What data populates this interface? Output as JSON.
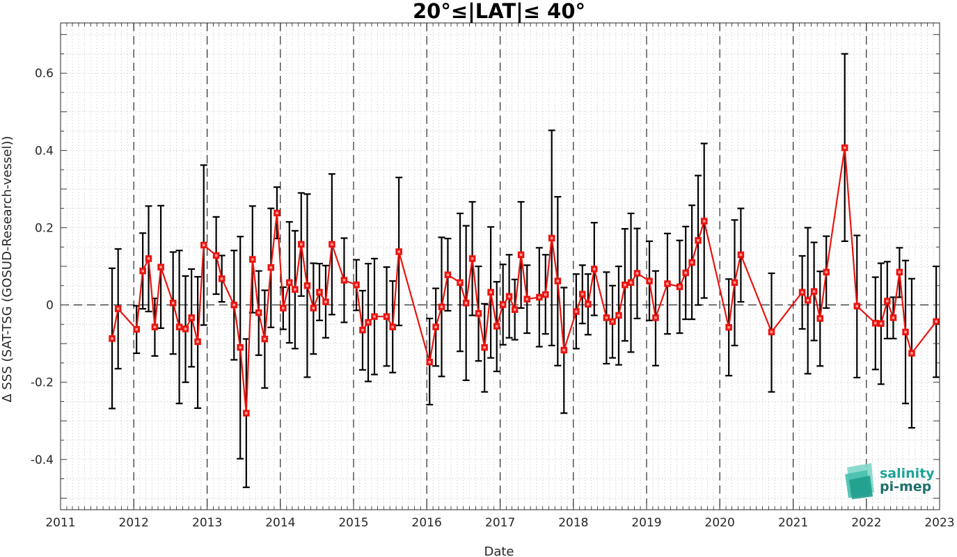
{
  "chart_data": {
    "type": "line",
    "title": "20°≤|LAT|≤ 40°",
    "xlabel": "Date",
    "ylabel": "Δ SSS (SAT-TSG (GOSUD-Research-vessel))",
    "xlim": [
      "2011-01-01",
      "2023-01-01"
    ],
    "ylim": [
      -0.53,
      0.73
    ],
    "xticks": [
      "2011",
      "2012",
      "2013",
      "2014",
      "2015",
      "2016",
      "2017",
      "2018",
      "2019",
      "2020",
      "2021",
      "2022",
      "2023"
    ],
    "yticks": [
      "-0.4",
      "-0.2",
      "0",
      "0.2",
      "0.4",
      "0.6"
    ],
    "year_separators": "dashed vertical line at each year start",
    "zero_line": "dashed horizontal line at 0",
    "grid": "dotted",
    "series": [
      {
        "color": "#e8140f",
        "marker": "square",
        "error_bar_color": "#000000",
        "points": [
          {
            "date": "2011-09-15",
            "y": -0.087,
            "lo": -0.268,
            "hi": 0.095
          },
          {
            "date": "2011-10-15",
            "y": -0.01,
            "lo": -0.165,
            "hi": 0.145
          },
          {
            "date": "2012-01-15",
            "y": -0.063,
            "lo": -0.125,
            "hi": -0.002
          },
          {
            "date": "2012-02-15",
            "y": 0.088,
            "lo": -0.01,
            "hi": 0.186
          },
          {
            "date": "2012-03-15",
            "y": 0.12,
            "lo": -0.017,
            "hi": 0.256
          },
          {
            "date": "2012-04-15",
            "y": -0.057,
            "lo": -0.132,
            "hi": 0.017
          },
          {
            "date": "2012-05-15",
            "y": 0.098,
            "lo": -0.06,
            "hi": 0.257
          },
          {
            "date": "2012-07-15",
            "y": 0.005,
            "lo": -0.127,
            "hi": 0.137
          },
          {
            "date": "2012-08-15",
            "y": -0.057,
            "lo": -0.255,
            "hi": 0.141
          },
          {
            "date": "2012-09-15",
            "y": -0.062,
            "lo": -0.2,
            "hi": 0.075
          },
          {
            "date": "2012-10-15",
            "y": -0.033,
            "lo": -0.16,
            "hi": 0.093
          },
          {
            "date": "2012-11-15",
            "y": -0.095,
            "lo": -0.267,
            "hi": 0.073
          },
          {
            "date": "2012-12-15",
            "y": 0.155,
            "lo": -0.052,
            "hi": 0.362
          },
          {
            "date": "2013-02-15",
            "y": 0.128,
            "lo": 0.028,
            "hi": 0.228
          },
          {
            "date": "2013-03-15",
            "y": 0.068,
            "lo": 0.008,
            "hi": 0.128
          },
          {
            "date": "2013-05-15",
            "y": 0.0,
            "lo": -0.142,
            "hi": 0.141
          },
          {
            "date": "2013-06-15",
            "y": -0.11,
            "lo": -0.398,
            "hi": 0.177
          },
          {
            "date": "2013-07-15",
            "y": -0.28,
            "lo": -0.472,
            "hi": -0.088
          },
          {
            "date": "2013-08-15",
            "y": 0.118,
            "lo": -0.02,
            "hi": 0.256
          },
          {
            "date": "2013-09-15",
            "y": -0.02,
            "lo": -0.13,
            "hi": 0.088
          },
          {
            "date": "2013-10-15",
            "y": -0.088,
            "lo": -0.215,
            "hi": 0.038
          },
          {
            "date": "2013-11-15",
            "y": 0.097,
            "lo": -0.058,
            "hi": 0.25
          },
          {
            "date": "2013-12-15",
            "y": 0.238,
            "lo": 0.172,
            "hi": 0.305
          },
          {
            "date": "2014-01-15",
            "y": -0.008,
            "lo": -0.063,
            "hi": 0.046
          },
          {
            "date": "2014-02-15",
            "y": 0.058,
            "lo": -0.098,
            "hi": 0.215
          },
          {
            "date": "2014-03-15",
            "y": 0.04,
            "lo": -0.113,
            "hi": 0.192
          },
          {
            "date": "2014-04-15",
            "y": 0.157,
            "lo": 0.023,
            "hi": 0.29
          },
          {
            "date": "2014-05-15",
            "y": 0.05,
            "lo": -0.187,
            "hi": 0.287
          },
          {
            "date": "2014-06-15",
            "y": -0.008,
            "lo": -0.127,
            "hi": 0.108
          },
          {
            "date": "2014-07-15",
            "y": 0.033,
            "lo": -0.04,
            "hi": 0.107
          },
          {
            "date": "2014-08-15",
            "y": 0.008,
            "lo": -0.085,
            "hi": 0.102
          },
          {
            "date": "2014-09-15",
            "y": 0.157,
            "lo": -0.025,
            "hi": 0.339
          },
          {
            "date": "2014-11-15",
            "y": 0.064,
            "lo": -0.045,
            "hi": 0.173
          },
          {
            "date": "2015-01-15",
            "y": 0.052,
            "lo": -0.014,
            "hi": 0.117
          },
          {
            "date": "2015-02-15",
            "y": -0.065,
            "lo": -0.168,
            "hi": 0.037
          },
          {
            "date": "2015-03-15",
            "y": -0.045,
            "lo": -0.198,
            "hi": 0.107
          },
          {
            "date": "2015-04-15",
            "y": -0.03,
            "lo": -0.18,
            "hi": 0.12
          },
          {
            "date": "2015-06-15",
            "y": -0.03,
            "lo": -0.158,
            "hi": 0.098
          },
          {
            "date": "2015-07-15",
            "y": -0.057,
            "lo": -0.175,
            "hi": 0.062
          },
          {
            "date": "2015-08-15",
            "y": 0.138,
            "lo": -0.053,
            "hi": 0.33
          },
          {
            "date": "2016-01-15",
            "y": -0.148,
            "lo": -0.258,
            "hi": -0.035
          },
          {
            "date": "2016-02-15",
            "y": -0.057,
            "lo": -0.158,
            "hi": 0.043
          },
          {
            "date": "2016-03-15",
            "y": -0.005,
            "lo": -0.185,
            "hi": 0.175
          },
          {
            "date": "2016-04-15",
            "y": 0.078,
            "lo": -0.015,
            "hi": 0.172
          },
          {
            "date": "2016-06-15",
            "y": 0.058,
            "lo": -0.12,
            "hi": 0.237
          },
          {
            "date": "2016-07-15",
            "y": 0.005,
            "lo": -0.195,
            "hi": 0.205
          },
          {
            "date": "2016-08-15",
            "y": 0.12,
            "lo": -0.027,
            "hi": 0.267
          },
          {
            "date": "2016-09-15",
            "y": -0.022,
            "lo": -0.145,
            "hi": 0.1
          },
          {
            "date": "2016-10-15",
            "y": -0.11,
            "lo": -0.225,
            "hi": 0.003
          },
          {
            "date": "2016-11-15",
            "y": 0.033,
            "lo": -0.137,
            "hi": 0.202
          },
          {
            "date": "2016-12-15",
            "y": -0.055,
            "lo": -0.172,
            "hi": 0.06
          },
          {
            "date": "2017-01-15",
            "y": 0.001,
            "lo": -0.103,
            "hi": 0.105
          },
          {
            "date": "2017-02-15",
            "y": 0.022,
            "lo": -0.085,
            "hi": 0.13
          },
          {
            "date": "2017-03-15",
            "y": -0.012,
            "lo": -0.09,
            "hi": 0.066
          },
          {
            "date": "2017-04-15",
            "y": 0.13,
            "lo": -0.008,
            "hi": 0.267
          },
          {
            "date": "2017-05-15",
            "y": 0.015,
            "lo": -0.073,
            "hi": 0.103
          },
          {
            "date": "2017-07-15",
            "y": 0.02,
            "lo": -0.108,
            "hi": 0.148
          },
          {
            "date": "2017-08-15",
            "y": 0.027,
            "lo": -0.075,
            "hi": 0.13
          },
          {
            "date": "2017-09-15",
            "y": 0.173,
            "lo": -0.105,
            "hi": 0.452
          },
          {
            "date": "2017-10-15",
            "y": 0.062,
            "lo": -0.157,
            "hi": 0.28
          },
          {
            "date": "2017-11-15",
            "y": -0.117,
            "lo": -0.28,
            "hi": 0.045
          },
          {
            "date": "2018-01-15",
            "y": -0.017,
            "lo": -0.113,
            "hi": 0.08
          },
          {
            "date": "2018-02-15",
            "y": 0.028,
            "lo": -0.048,
            "hi": 0.103
          },
          {
            "date": "2018-03-15",
            "y": 0.002,
            "lo": -0.077,
            "hi": 0.08
          },
          {
            "date": "2018-04-15",
            "y": 0.093,
            "lo": -0.027,
            "hi": 0.213
          },
          {
            "date": "2018-06-15",
            "y": -0.033,
            "lo": -0.152,
            "hi": 0.085
          },
          {
            "date": "2018-07-15",
            "y": -0.043,
            "lo": -0.137,
            "hi": 0.05
          },
          {
            "date": "2018-08-15",
            "y": -0.027,
            "lo": -0.155,
            "hi": 0.1
          },
          {
            "date": "2018-09-15",
            "y": 0.052,
            "lo": -0.093,
            "hi": 0.197
          },
          {
            "date": "2018-10-15",
            "y": 0.058,
            "lo": -0.122,
            "hi": 0.237
          },
          {
            "date": "2018-11-15",
            "y": 0.082,
            "lo": -0.035,
            "hi": 0.198
          },
          {
            "date": "2019-01-15",
            "y": 0.062,
            "lo": -0.04,
            "hi": 0.165
          },
          {
            "date": "2019-02-15",
            "y": -0.033,
            "lo": -0.157,
            "hi": 0.088
          },
          {
            "date": "2019-04-15",
            "y": 0.055,
            "lo": -0.075,
            "hi": 0.185
          },
          {
            "date": "2019-06-15",
            "y": 0.047,
            "lo": -0.073,
            "hi": 0.167
          },
          {
            "date": "2019-07-15",
            "y": 0.083,
            "lo": -0.037,
            "hi": 0.203
          },
          {
            "date": "2019-08-15",
            "y": 0.11,
            "lo": -0.037,
            "hi": 0.258
          },
          {
            "date": "2019-09-15",
            "y": 0.167,
            "lo": 0.0,
            "hi": 0.335
          },
          {
            "date": "2019-10-15",
            "y": 0.217,
            "lo": 0.018,
            "hi": 0.418
          },
          {
            "date": "2020-02-15",
            "y": -0.058,
            "lo": -0.183,
            "hi": 0.067
          },
          {
            "date": "2020-03-15",
            "y": 0.058,
            "lo": -0.105,
            "hi": 0.22
          },
          {
            "date": "2020-04-15",
            "y": 0.13,
            "lo": 0.008,
            "hi": 0.25
          },
          {
            "date": "2020-09-15",
            "y": -0.07,
            "lo": -0.225,
            "hi": 0.082
          },
          {
            "date": "2021-02-15",
            "y": 0.033,
            "lo": -0.062,
            "hi": 0.127
          },
          {
            "date": "2021-03-15",
            "y": 0.012,
            "lo": -0.178,
            "hi": 0.2
          },
          {
            "date": "2021-04-15",
            "y": 0.035,
            "lo": -0.092,
            "hi": 0.162
          },
          {
            "date": "2021-05-15",
            "y": -0.035,
            "lo": -0.158,
            "hi": 0.087
          },
          {
            "date": "2021-06-15",
            "y": 0.085,
            "lo": -0.008,
            "hi": 0.178
          },
          {
            "date": "2021-09-15",
            "y": 0.407,
            "lo": 0.165,
            "hi": 0.65
          },
          {
            "date": "2021-11-15",
            "y": -0.003,
            "lo": -0.188,
            "hi": 0.18
          },
          {
            "date": "2022-02-15",
            "y": -0.047,
            "lo": -0.167,
            "hi": 0.072
          },
          {
            "date": "2022-03-15",
            "y": -0.048,
            "lo": -0.205,
            "hi": 0.108
          },
          {
            "date": "2022-04-15",
            "y": 0.01,
            "lo": -0.087,
            "hi": 0.112
          },
          {
            "date": "2022-05-15",
            "y": -0.033,
            "lo": -0.087,
            "hi": 0.02
          },
          {
            "date": "2022-06-15",
            "y": 0.085,
            "lo": 0.02,
            "hi": 0.148
          },
          {
            "date": "2022-07-15",
            "y": -0.07,
            "lo": -0.255,
            "hi": 0.115
          },
          {
            "date": "2022-08-15",
            "y": -0.125,
            "lo": -0.318,
            "hi": 0.068
          },
          {
            "date": "2022-12-15",
            "y": -0.043,
            "lo": -0.187,
            "hi": 0.1
          }
        ]
      }
    ]
  },
  "logo": {
    "line1": "salinity",
    "line2": "pi-mep",
    "color1": "#1ca396",
    "color2": "#1f6f6b"
  }
}
